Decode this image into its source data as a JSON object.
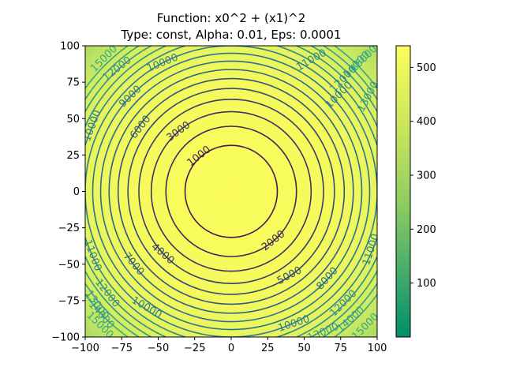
{
  "chart_data": {
    "type": "contour",
    "title_line1": "Function: x0^2 + (x1)^2",
    "title_line2": "Type: const, Alpha: 0.01, Eps: 0.0001",
    "xlabel": "",
    "ylabel": "",
    "xlim": [
      -100,
      100
    ],
    "ylim": [
      -100,
      100
    ],
    "x_ticks": [
      -100,
      -75,
      -50,
      -25,
      0,
      25,
      50,
      75,
      100
    ],
    "y_ticks": [
      -100,
      -75,
      -50,
      -25,
      0,
      25,
      50,
      75,
      100
    ],
    "x_tick_labels": [
      "−100",
      "−75",
      "−50",
      "−25",
      "0",
      "25",
      "50",
      "75",
      "100"
    ],
    "y_tick_labels": [
      "−100",
      "−75",
      "−50",
      "−25",
      "0",
      "25",
      "50",
      "75",
      "100"
    ],
    "contour_levels": [
      1000,
      2000,
      3000,
      4000,
      5000,
      6000,
      7000,
      8000,
      9000,
      10000,
      11000,
      12000,
      13000,
      14000,
      15000
    ],
    "contour_labels": [
      {
        "text": "1000",
        "x": -22,
        "y": 24,
        "angle": -38
      },
      {
        "text": "2000",
        "x": 29,
        "y": -34,
        "angle": -38
      },
      {
        "text": "3000",
        "x": -36,
        "y": 41,
        "angle": -36
      },
      {
        "text": "4000",
        "x": -47,
        "y": -43,
        "angle": 40
      },
      {
        "text": "5000",
        "x": 40,
        "y": -58,
        "angle": -28
      },
      {
        "text": "6000",
        "x": -62,
        "y": 44,
        "angle": -52
      },
      {
        "text": "7000",
        "x": -67,
        "y": -50,
        "angle": 50
      },
      {
        "text": "8000",
        "x": 66,
        "y": -60,
        "angle": -48
      },
      {
        "text": "9000",
        "x": -69,
        "y": 65,
        "angle": -44
      },
      {
        "text": "10000",
        "x": -47,
        "y": 88,
        "angle": -22
      },
      {
        "text": "10000",
        "x": 74,
        "y": 66,
        "angle": -45
      },
      {
        "text": "10000",
        "x": -58,
        "y": -80,
        "angle": 30
      },
      {
        "text": "10000",
        "x": 43,
        "y": -91,
        "angle": -18
      },
      {
        "text": "11000",
        "x": 55,
        "y": 90,
        "angle": -30
      },
      {
        "text": "11000",
        "x": -95,
        "y": -44,
        "angle": 70
      },
      {
        "text": "11000",
        "x": 96,
        "y": -40,
        "angle": -72
      },
      {
        "text": "12000",
        "x": 77,
        "y": 77,
        "angle": -45
      },
      {
        "text": "12000",
        "x": -78,
        "y": 84,
        "angle": -38
      },
      {
        "text": "12000",
        "x": -85,
        "y": -70,
        "angle": 52
      },
      {
        "text": "12000",
        "x": 77,
        "y": -77,
        "angle": -45
      },
      {
        "text": "13000",
        "x": 94,
        "y": 65,
        "angle": -62
      },
      {
        "text": "13000",
        "x": 63,
        "y": -97,
        "angle": -22
      },
      {
        "text": "14000",
        "x": 86,
        "y": 87,
        "angle": -45
      },
      {
        "text": "14000",
        "x": 82,
        "y": -88,
        "angle": -42
      },
      {
        "text": "14000",
        "x": -89,
        "y": -85,
        "angle": 48
      },
      {
        "text": "15000",
        "x": -87,
        "y": 91,
        "angle": -45
      },
      {
        "text": "15000",
        "x": -90,
        "y": -92,
        "angle": 45
      },
      {
        "text": "15000",
        "x": 91,
        "y": 91,
        "angle": -45
      },
      {
        "text": "15000",
        "x": 92,
        "y": -93,
        "angle": -45
      },
      {
        "text": "13000",
        "x": -92,
        "y": -78,
        "angle": 55
      },
      {
        "text": "10000",
        "x": -95,
        "y": 45,
        "angle": -70
      }
    ],
    "colorbar": {
      "min": 0,
      "max": 540,
      "ticks": [
        100,
        200,
        300,
        400,
        500
      ],
      "tick_labels": [
        "100",
        "200",
        "300",
        "400",
        "500"
      ]
    },
    "colors": {
      "high": "#f8fc5a",
      "mid": "#a8d661",
      "low": "#008f6a",
      "line_inner": "#421c4e",
      "line_mid": "#2c6c8e",
      "line_outer": "#36a787"
    }
  }
}
